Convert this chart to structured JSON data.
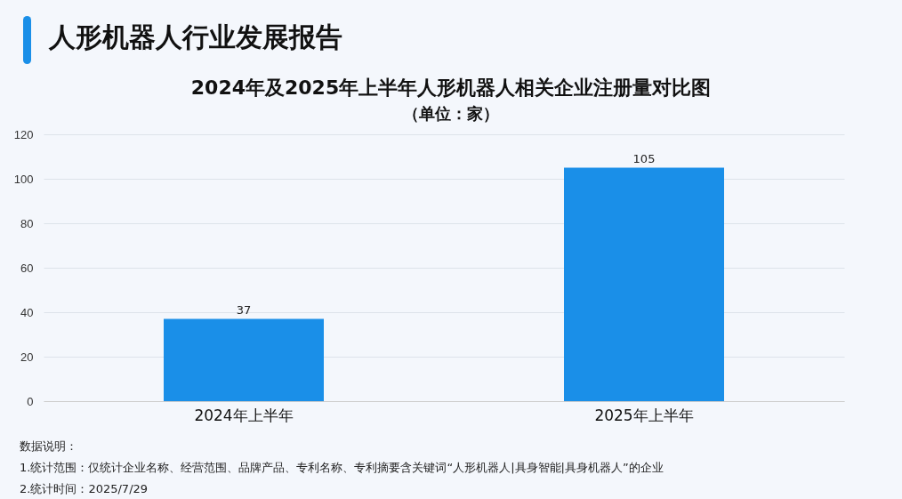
{
  "chart_data": {
    "type": "bar",
    "title": "人形机器人行业发展报告",
    "subtitle": "2024年及2025年上半年人形机器人相关企业注册量对比图",
    "categories": [
      "2024年上半年",
      "2025年上半年"
    ],
    "values": [
      37,
      105
    ],
    "color": "#1a8fe8",
    "ylim": [
      0,
      120
    ],
    "yticks": [
      0,
      20,
      40,
      60,
      80,
      100,
      120
    ],
    "grid": "y",
    "data_labels": true,
    "annotations": [
      "（单位：家）",
      "数据说明：",
      "1.统计范围：仅统计企业名称、经营范围、品牌产品、专利名称、专利摘要含关键词“人形机器人|具身智能|具身机器人”的企业",
      "2.统计时间：2025/7/29"
    ]
  }
}
